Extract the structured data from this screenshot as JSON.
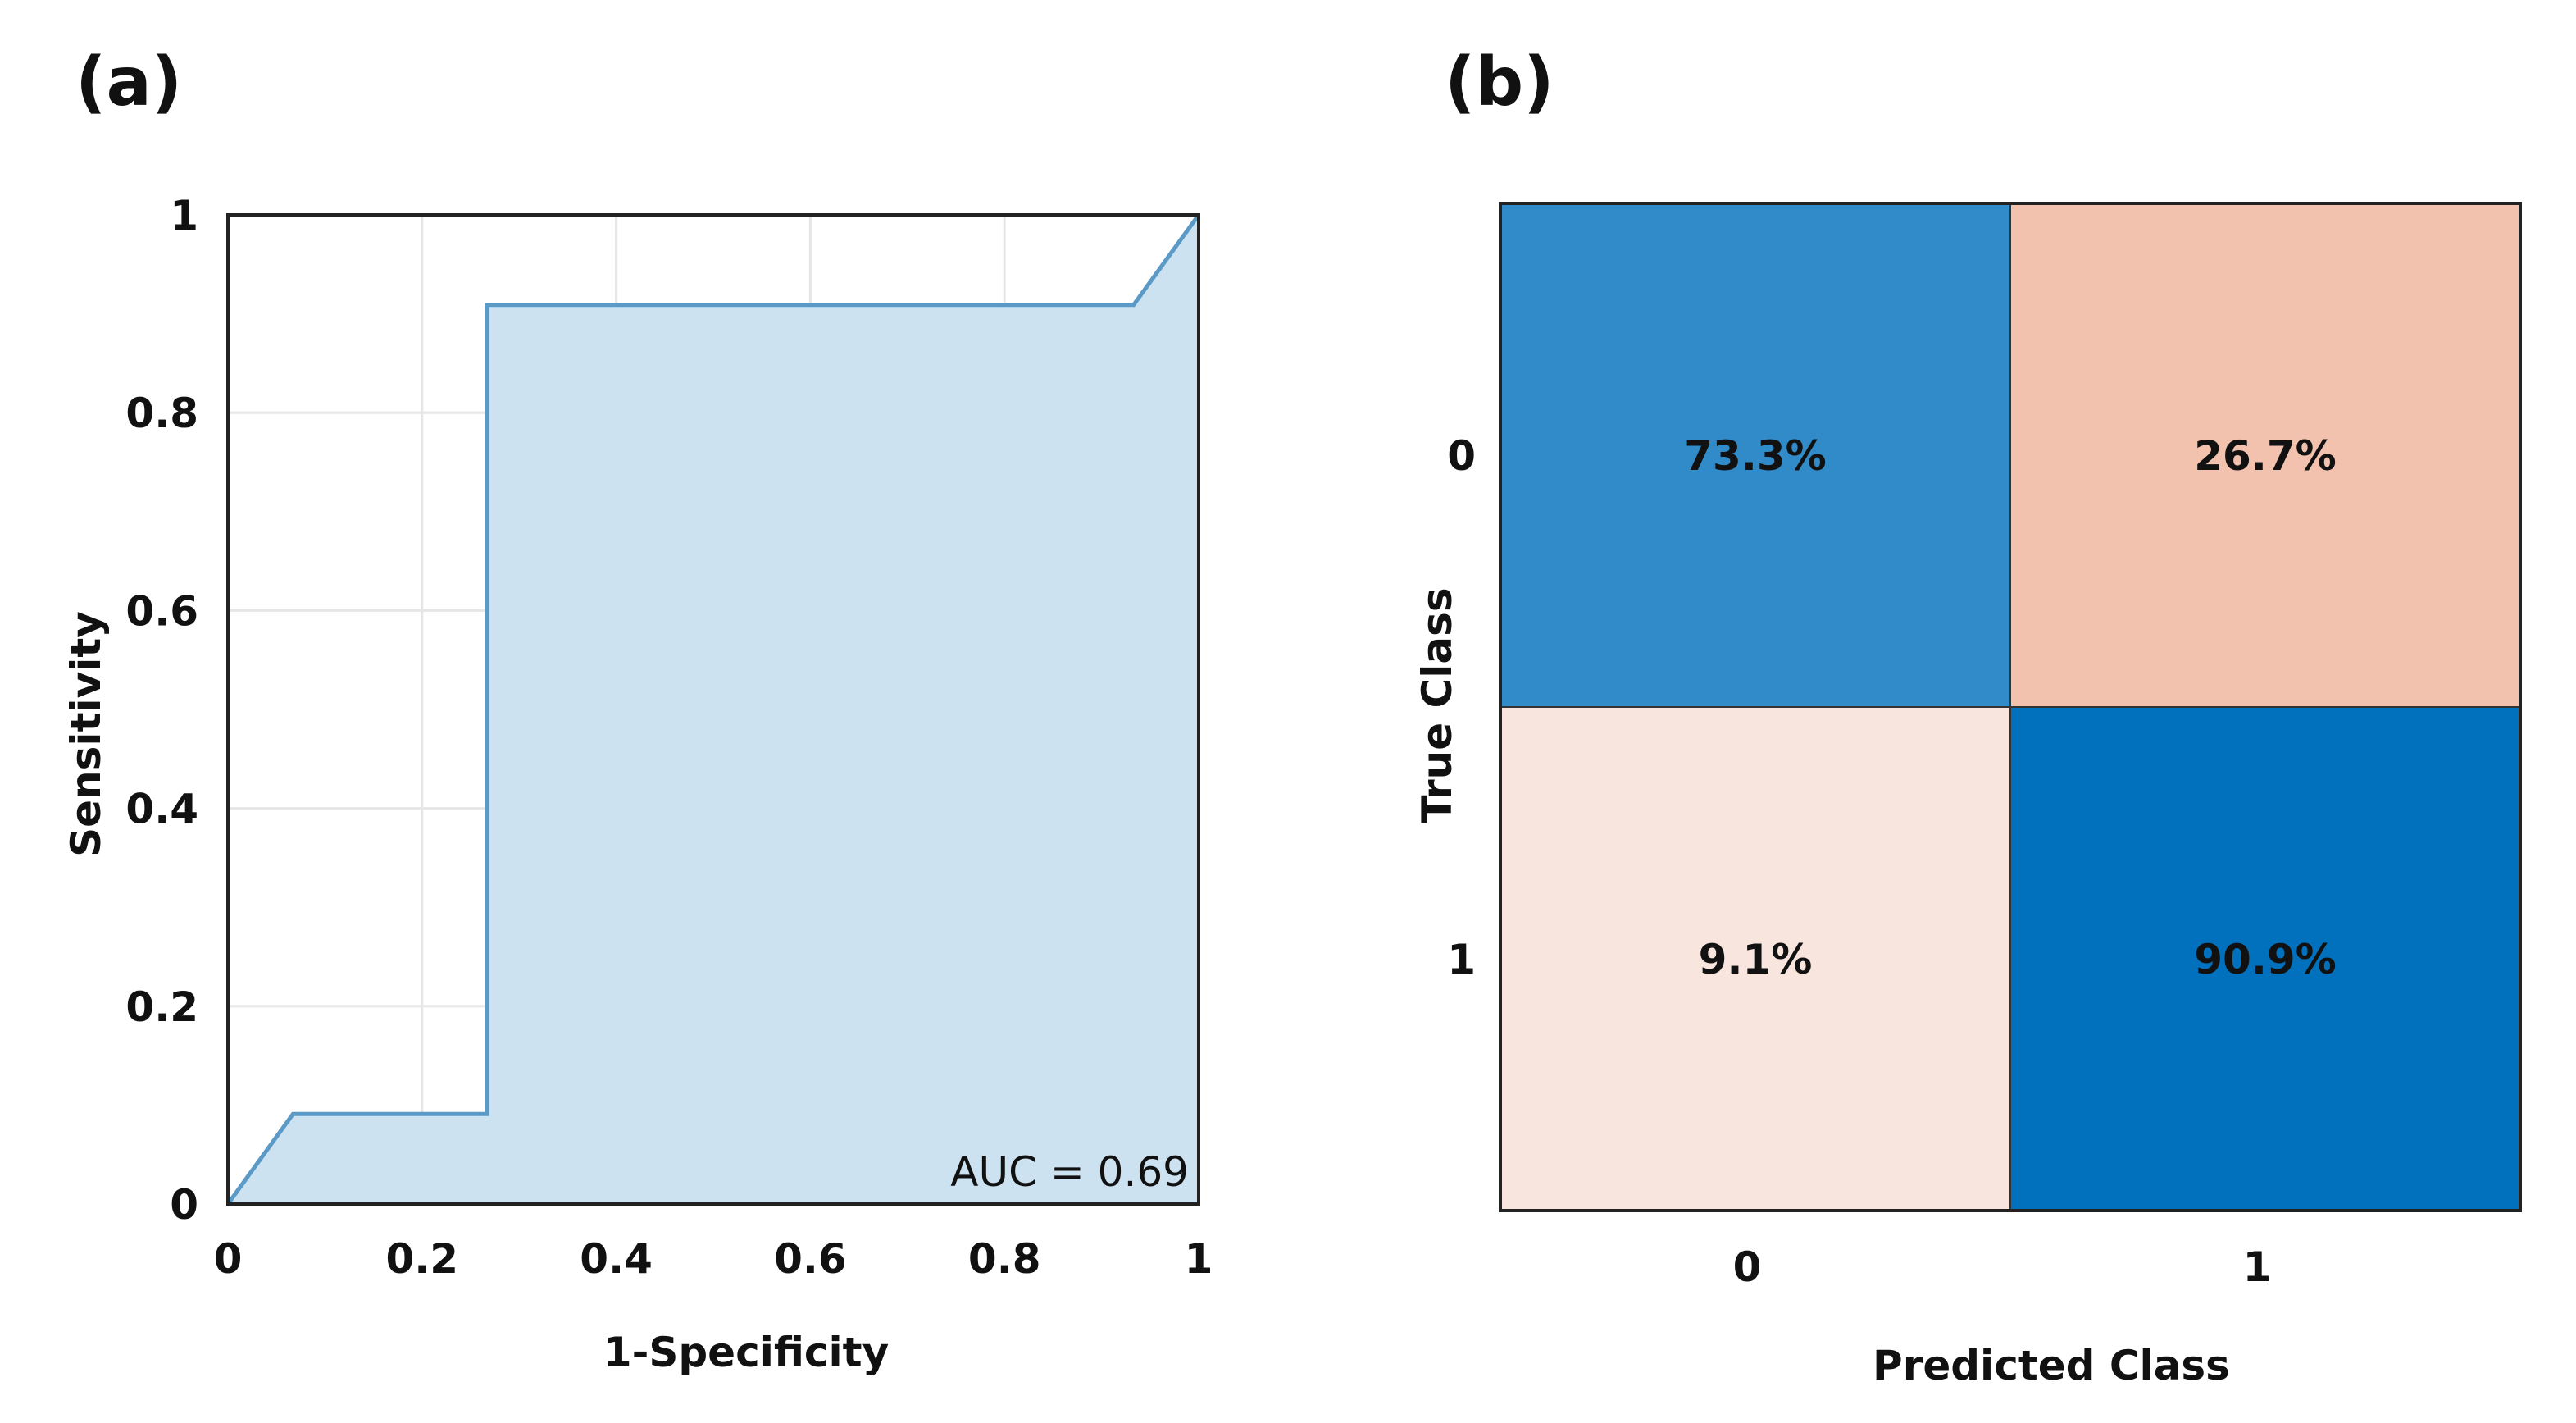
{
  "panels": {
    "a": {
      "label": "(a)"
    },
    "b": {
      "label": "(b)"
    }
  },
  "chart_data": [
    {
      "type": "area",
      "title": "",
      "xlabel": "1-Specificity",
      "ylabel": "Sensitivity",
      "xlim": [
        0,
        1
      ],
      "ylim": [
        0,
        1
      ],
      "grid": true,
      "x_ticks": [
        "0",
        "0.2",
        "0.4",
        "0.6",
        "0.8",
        "1"
      ],
      "y_ticks": [
        "0",
        "0.2",
        "0.4",
        "0.6",
        "0.8",
        "1"
      ],
      "x": [
        0,
        0.067,
        0.267,
        0.267,
        0.933,
        1
      ],
      "y": [
        0,
        0.091,
        0.091,
        0.909,
        0.909,
        1
      ],
      "annotation": "AUC = 0.69",
      "colors": {
        "fill": "#cde2f0",
        "line": "#5b9ac6",
        "grid": "#e6e6e6",
        "frame": "#222222"
      }
    },
    {
      "type": "heatmap",
      "title": "",
      "xlabel": "Predicted Class",
      "ylabel": "True Class",
      "x_categories": [
        "0",
        "1"
      ],
      "y_categories": [
        "0",
        "1"
      ],
      "values": [
        [
          73.3,
          26.7
        ],
        [
          9.1,
          90.9
        ]
      ],
      "labels": [
        [
          "73.3%",
          "26.7%"
        ],
        [
          "9.1%",
          "90.9%"
        ]
      ],
      "colors": [
        [
          "#318bc9",
          "#f2c2ae"
        ],
        [
          "#f8e5dd",
          "#0171bd"
        ]
      ]
    }
  ]
}
